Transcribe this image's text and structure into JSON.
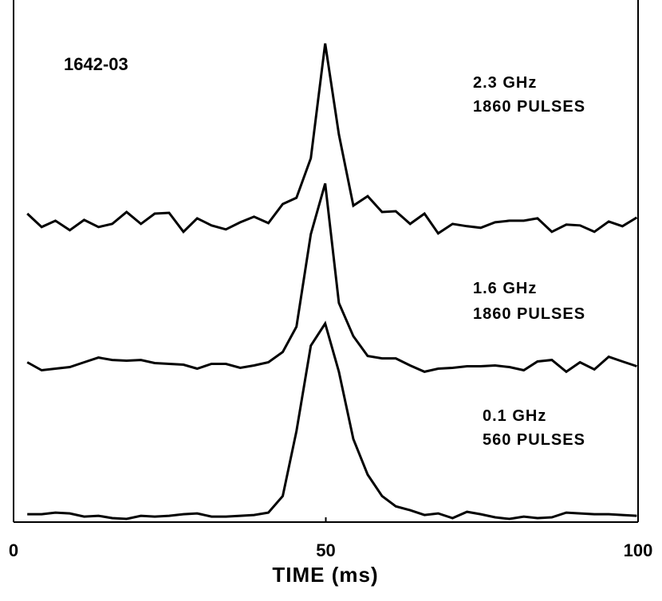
{
  "chart_data": {
    "type": "line",
    "title": "1642-03",
    "xlabel": "TIME (ms)",
    "xlim": [
      0,
      100
    ],
    "xticks": [
      0,
      50,
      100
    ],
    "ylim": [
      -5,
      655
    ],
    "color": "#000000",
    "x": [
      2.2,
      4.5,
      6.7,
      9.0,
      11.3,
      13.6,
      15.8,
      18.1,
      20.4,
      22.6,
      24.9,
      27.2,
      29.4,
      31.7,
      34.0,
      36.3,
      38.5,
      40.8,
      43.1,
      45.3,
      47.6,
      49.9,
      52.1,
      54.4,
      56.7,
      59.0,
      61.2,
      63.5,
      65.8,
      68.0,
      70.3,
      72.6,
      74.8,
      77.1,
      79.4,
      81.7,
      83.9,
      86.2,
      88.5,
      90.7,
      93.0,
      95.3,
      97.5,
      99.8
    ],
    "series": [
      {
        "name": "2.3 GHz",
        "pulses": "1860 PULSES",
        "values": [
          385,
          368,
          376,
          364,
          377,
          368,
          372,
          387,
          372,
          385,
          386,
          362,
          379,
          370,
          365,
          374,
          381,
          373,
          397,
          405,
          455,
          600,
          485,
          395,
          407,
          387,
          388,
          372,
          385,
          360,
          372,
          369,
          367,
          374,
          376,
          376,
          379,
          362,
          371,
          370,
          362,
          375,
          369,
          380
        ]
      },
      {
        "name": "1.6 GHz",
        "pulses": "1860 PULSES",
        "values": [
          197,
          187,
          189,
          191,
          197,
          203,
          200,
          199,
          200,
          196,
          195,
          194,
          189,
          195,
          195,
          190,
          193,
          197,
          210,
          242,
          359,
          423,
          272,
          230,
          205,
          202,
          202,
          193,
          185,
          189,
          190,
          192,
          192,
          193,
          191,
          187,
          198,
          200,
          185,
          197,
          188,
          204,
          198,
          192
        ]
      },
      {
        "name": "0.1 GHz",
        "pulses": "560 PULSES",
        "values": [
          5,
          5,
          7,
          6,
          2,
          3,
          0,
          -1,
          3,
          2,
          3,
          5,
          6,
          2,
          2,
          3,
          4,
          7,
          28,
          110,
          218,
          246,
          185,
          100,
          55,
          28,
          15,
          10,
          4,
          6,
          0,
          8,
          5,
          1,
          -1,
          2,
          0,
          1,
          7,
          6,
          5,
          5,
          4,
          3
        ]
      }
    ]
  }
}
